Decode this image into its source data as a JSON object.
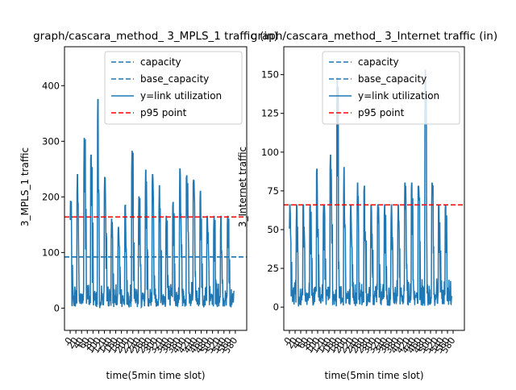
{
  "chart_data": [
    {
      "type": "line",
      "title": "graph/cascara_method_ 3_MPLS_1 traffic (in)",
      "xlabel": "time(5min time slot)",
      "ylabel": "3_MPLS_1 traffic",
      "xlim": [
        -20,
        620
      ],
      "ylim": [
        -40,
        470
      ],
      "yticks": [
        0,
        100,
        200,
        300,
        400
      ],
      "xticks": [
        "0",
        "20",
        "40",
        "60",
        "80",
        "100",
        "120",
        "140",
        "160",
        "180",
        "200",
        "220",
        "240",
        "260",
        "280",
        "300",
        "320",
        "340",
        "360",
        "380",
        "400",
        "420",
        "440",
        "460",
        "480",
        "500",
        "520",
        "540",
        "560",
        "580"
      ],
      "legend": [
        "capacity",
        "base_capacity",
        "y=link utilization",
        "p95 point"
      ],
      "legend_position": "top-right",
      "lines": {
        "capacity": 92,
        "base_capacity": 92,
        "p95_point": 164
      },
      "series": [
        {
          "name": "y=link utilization",
          "color": "#1f77b4",
          "profile": {
            "n_points": 576,
            "period": 24,
            "baseline_range": [
              3,
              50
            ],
            "peaks": [
              192,
              240,
              305,
              275,
              375,
              235,
              160,
              145,
              185,
              282,
              200,
              248,
              240,
              220,
              165,
              190,
              250,
              238,
              230,
              210,
              165,
              165,
              165,
              165,
              165,
              165,
              162,
              165,
              165
            ]
          }
        }
      ]
    },
    {
      "type": "line",
      "title": "graph/cascara_method_ 3_Internet traffic (in)",
      "xlabel": "time(5min time slot)",
      "ylabel": "3_Internet traffic",
      "xlim": [
        -20,
        620
      ],
      "ylim": [
        -15,
        168
      ],
      "yticks": [
        0,
        25,
        50,
        75,
        100,
        125,
        150
      ],
      "xticks": [
        "0",
        "20",
        "40",
        "60",
        "80",
        "100",
        "120",
        "140",
        "160",
        "180",
        "200",
        "220",
        "240",
        "260",
        "280",
        "300",
        "320",
        "340",
        "360",
        "380",
        "400",
        "420",
        "440",
        "460",
        "480",
        "500",
        "520",
        "540",
        "560",
        "580"
      ],
      "legend": [
        "capacity",
        "base_capacity",
        "y=link utilization",
        "p95 point"
      ],
      "legend_position": "top-right",
      "lines": {
        "p95_point": 66
      },
      "series": [
        {
          "name": "y=link utilization",
          "color": "#1f77b4",
          "profile": {
            "n_points": 576,
            "period": 24,
            "baseline_range": [
              1,
              20
            ],
            "peaks": [
              66,
              66,
              66,
              66,
              89,
              66,
              98,
              148,
              90,
              66,
              80,
              78,
              66,
              66,
              66,
              66,
              66,
              80,
              80,
              78,
              153,
              80,
              66,
              66,
              66,
              66,
              89,
              148,
              89
            ]
          }
        }
      ]
    }
  ]
}
